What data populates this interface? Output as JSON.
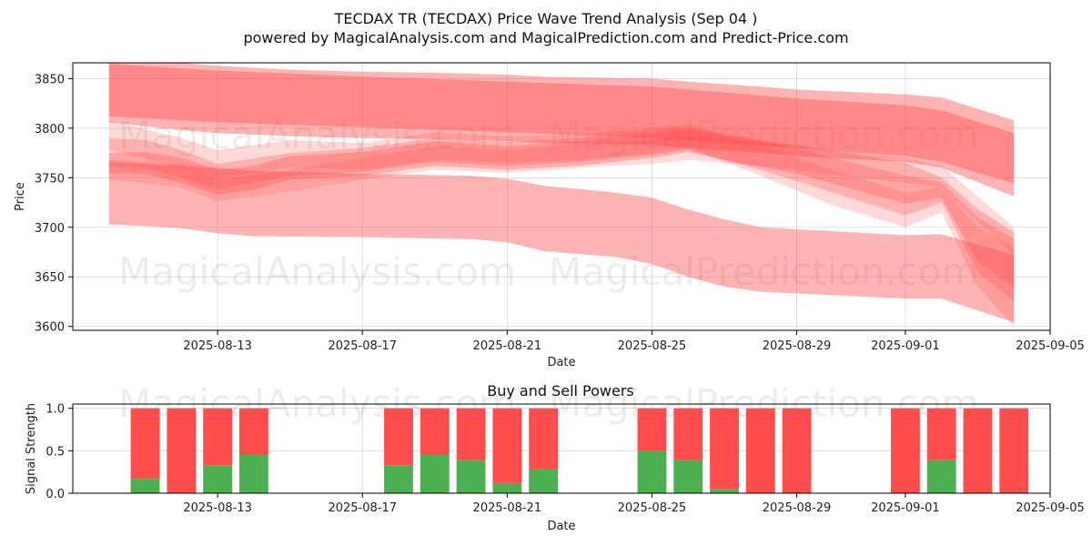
{
  "figure": {
    "title": "TECDAX TR (TECDAX) Price Wave Trend Analysis (Sep 04 )",
    "subtitle": "powered by MagicalAnalysis.com and MagicalPrediction.com and Predict-Price.com",
    "watermarks": [
      "MagicalAnalysis.com",
      "MagicalPrediction.com"
    ]
  },
  "colors": {
    "band": "#ff4d4d",
    "buy": "#4caf50",
    "sell": "#ff4d4d",
    "grid": "#d9d9d9",
    "axis": "#000000"
  },
  "chart_data": [
    {
      "type": "area",
      "name": "price-wave",
      "title": "",
      "xlabel": "Date",
      "ylabel": "Price",
      "xlim": [
        "2025-08-09",
        "2025-09-05"
      ],
      "ylim": [
        3596,
        3866
      ],
      "yticks": [
        3600,
        3650,
        3700,
        3750,
        3800,
        3850
      ],
      "xticks": [
        "2025-08-13",
        "2025-08-17",
        "2025-08-21",
        "2025-08-25",
        "2025-08-29",
        "2025-09-01",
        "2025-09-05"
      ],
      "grid": true,
      "series": [
        {
          "name": "upper-channel",
          "opacity": 0.42,
          "x": [
            "2025-08-10",
            "2025-08-12",
            "2025-08-13",
            "2025-08-15",
            "2025-08-17",
            "2025-08-19",
            "2025-08-21",
            "2025-08-22",
            "2025-08-25",
            "2025-08-26",
            "2025-08-28",
            "2025-08-29",
            "2025-09-01",
            "2025-09-02",
            "2025-09-04"
          ],
          "upper": [
            3873,
            3866,
            3863,
            3859,
            3857,
            3856,
            3854,
            3852,
            3850,
            3847,
            3842,
            3839,
            3834,
            3831,
            3808
          ],
          "lower": [
            3806,
            3798,
            3795,
            3792,
            3790,
            3789,
            3787,
            3785,
            3783,
            3780,
            3775,
            3772,
            3766,
            3760,
            3731
          ]
        },
        {
          "name": "upper-channel-core",
          "opacity": 0.42,
          "x": [
            "2025-08-10",
            "2025-08-13",
            "2025-08-17",
            "2025-08-21",
            "2025-08-25",
            "2025-08-29",
            "2025-09-01",
            "2025-09-02",
            "2025-09-04"
          ],
          "upper": [
            3865,
            3858,
            3852,
            3847,
            3842,
            3830,
            3823,
            3818,
            3795
          ],
          "lower": [
            3812,
            3806,
            3801,
            3796,
            3790,
            3780,
            3772,
            3766,
            3744
          ]
        },
        {
          "name": "lower-channel",
          "opacity": 0.42,
          "x": [
            "2025-08-10",
            "2025-08-12",
            "2025-08-13",
            "2025-08-14",
            "2025-08-17",
            "2025-08-20",
            "2025-08-21",
            "2025-08-22",
            "2025-08-24",
            "2025-08-25",
            "2025-08-26",
            "2025-08-27",
            "2025-08-28",
            "2025-09-01",
            "2025-09-02",
            "2025-09-04"
          ],
          "upper": [
            3766,
            3762,
            3760,
            3757,
            3754,
            3752,
            3749,
            3742,
            3735,
            3730,
            3718,
            3708,
            3700,
            3692,
            3693,
            3672
          ],
          "lower": [
            3703,
            3699,
            3694,
            3691,
            3690,
            3688,
            3685,
            3676,
            3670,
            3663,
            3650,
            3640,
            3635,
            3628,
            3628,
            3604
          ]
        },
        {
          "name": "mid-wave-1",
          "opacity": 0.32,
          "x": [
            "2025-08-10",
            "2025-08-11",
            "2025-08-12",
            "2025-08-13",
            "2025-08-14",
            "2025-08-15",
            "2025-08-17",
            "2025-08-19",
            "2025-08-21",
            "2025-08-23",
            "2025-08-25",
            "2025-08-26",
            "2025-08-27",
            "2025-08-29",
            "2025-09-01",
            "2025-09-02",
            "2025-09-03",
            "2025-09-04"
          ],
          "upper": [
            3775,
            3776,
            3770,
            3758,
            3762,
            3772,
            3776,
            3787,
            3782,
            3787,
            3794,
            3799,
            3792,
            3783,
            3765,
            3750,
            3718,
            3695
          ],
          "lower": [
            3755,
            3754,
            3745,
            3733,
            3738,
            3748,
            3752,
            3762,
            3758,
            3762,
            3770,
            3776,
            3768,
            3754,
            3724,
            3730,
            3665,
            3640
          ]
        },
        {
          "name": "mid-wave-2",
          "opacity": 0.28,
          "x": [
            "2025-08-10",
            "2025-08-11",
            "2025-08-12",
            "2025-08-13",
            "2025-08-15",
            "2025-08-17",
            "2025-08-19",
            "2025-08-21",
            "2025-08-23",
            "2025-08-25",
            "2025-08-26",
            "2025-08-28",
            "2025-08-30",
            "2025-09-01",
            "2025-09-02",
            "2025-09-03",
            "2025-09-04"
          ],
          "upper": [
            3790,
            3788,
            3778,
            3764,
            3775,
            3780,
            3790,
            3786,
            3790,
            3797,
            3801,
            3788,
            3770,
            3752,
            3745,
            3710,
            3688
          ],
          "lower": [
            3762,
            3760,
            3750,
            3738,
            3752,
            3756,
            3766,
            3762,
            3766,
            3773,
            3778,
            3758,
            3735,
            3712,
            3725,
            3655,
            3625
          ]
        },
        {
          "name": "mid-wave-3",
          "opacity": 0.22,
          "x": [
            "2025-08-10",
            "2025-08-12",
            "2025-08-13",
            "2025-08-15",
            "2025-08-17",
            "2025-08-19",
            "2025-08-21",
            "2025-08-23",
            "2025-08-25",
            "2025-08-26",
            "2025-08-28",
            "2025-08-30",
            "2025-09-01",
            "2025-09-02",
            "2025-09-03",
            "2025-09-04"
          ],
          "upper": [
            3808,
            3790,
            3778,
            3788,
            3785,
            3796,
            3792,
            3794,
            3800,
            3804,
            3782,
            3758,
            3735,
            3740,
            3700,
            3680
          ],
          "lower": [
            3778,
            3760,
            3750,
            3760,
            3758,
            3768,
            3765,
            3768,
            3775,
            3780,
            3752,
            3722,
            3700,
            3715,
            3640,
            3600
          ]
        },
        {
          "name": "mid-wave-4",
          "opacity": 0.2,
          "x": [
            "2025-08-10",
            "2025-08-12",
            "2025-08-13",
            "2025-08-15",
            "2025-08-17",
            "2025-08-19",
            "2025-08-21",
            "2025-08-23",
            "2025-08-25",
            "2025-08-26",
            "2025-08-28",
            "2025-09-01",
            "2025-09-02",
            "2025-09-04"
          ],
          "upper": [
            3768,
            3764,
            3748,
            3758,
            3770,
            3782,
            3778,
            3784,
            3788,
            3792,
            3786,
            3770,
            3762,
            3700
          ],
          "lower": [
            3748,
            3740,
            3726,
            3736,
            3748,
            3758,
            3755,
            3760,
            3764,
            3768,
            3762,
            3745,
            3740,
            3672
          ]
        }
      ]
    },
    {
      "type": "bar",
      "name": "buy-sell-powers",
      "title": "Buy and Sell Powers",
      "xlabel": "Date",
      "ylabel": "Signal Strength",
      "xlim": [
        "2025-08-09",
        "2025-09-05"
      ],
      "ylim": [
        0,
        1.05
      ],
      "yticks": [
        0.0,
        0.5,
        1.0
      ],
      "ytick_labels": [
        "0.0",
        "0.5",
        "1.0"
      ],
      "xticks": [
        "2025-08-13",
        "2025-08-17",
        "2025-08-21",
        "2025-08-25",
        "2025-08-29",
        "2025-09-01",
        "2025-09-05"
      ],
      "grid": true,
      "categories": [
        "2025-08-11",
        "2025-08-12",
        "2025-08-13",
        "2025-08-14",
        "2025-08-18",
        "2025-08-19",
        "2025-08-20",
        "2025-08-21",
        "2025-08-22",
        "2025-08-25",
        "2025-08-26",
        "2025-08-27",
        "2025-08-28",
        "2025-08-29",
        "2025-09-01",
        "2025-09-02",
        "2025-09-03",
        "2025-09-04"
      ],
      "series": [
        {
          "name": "Buy",
          "values": [
            0.17,
            0.0,
            0.33,
            0.45,
            0.33,
            0.45,
            0.39,
            0.12,
            0.28,
            0.5,
            0.39,
            0.05,
            0.0,
            0.0,
            0.0,
            0.39,
            0.0,
            0.0
          ]
        },
        {
          "name": "Sell",
          "values": [
            0.83,
            1.0,
            0.67,
            0.55,
            0.67,
            0.55,
            0.61,
            0.88,
            0.72,
            0.5,
            0.61,
            0.95,
            1.0,
            1.0,
            1.0,
            0.61,
            1.0,
            1.0
          ]
        }
      ]
    }
  ]
}
